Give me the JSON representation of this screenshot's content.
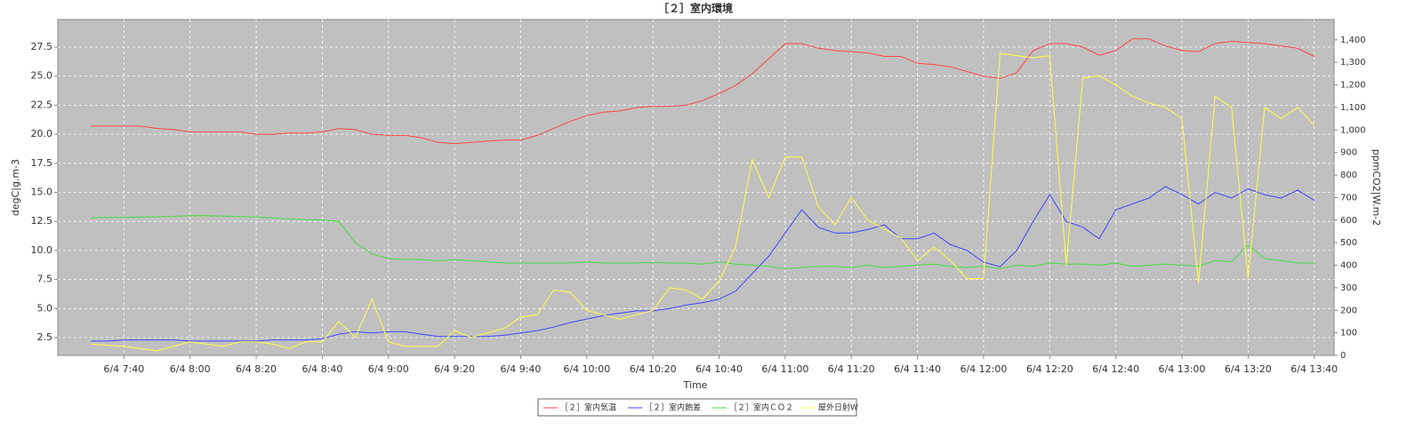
{
  "chart_data": {
    "type": "line",
    "title": "［２］室内環境",
    "xlabel": "Time",
    "ylabel": "degC|g.m-3",
    "y2label": "ppmCO2|W.m-2",
    "grid": true,
    "legend": "bottom",
    "x": [
      "6/4 7:30",
      "6/4 7:35",
      "6/4 7:40",
      "6/4 7:45",
      "6/4 7:50",
      "6/4 7:55",
      "6/4 8:00",
      "6/4 8:05",
      "6/4 8:10",
      "6/4 8:15",
      "6/4 8:20",
      "6/4 8:25",
      "6/4 8:30",
      "6/4 8:35",
      "6/4 8:40",
      "6/4 8:45",
      "6/4 8:50",
      "6/4 8:55",
      "6/4 9:00",
      "6/4 9:05",
      "6/4 9:10",
      "6/4 9:15",
      "6/4 9:20",
      "6/4 9:25",
      "6/4 9:30",
      "6/4 9:35",
      "6/4 9:40",
      "6/4 9:45",
      "6/4 9:50",
      "6/4 9:55",
      "6/4 10:00",
      "6/4 10:05",
      "6/4 10:10",
      "6/4 10:15",
      "6/4 10:20",
      "6/4 10:25",
      "6/4 10:30",
      "6/4 10:35",
      "6/4 10:40",
      "6/4 10:45",
      "6/4 10:50",
      "6/4 10:55",
      "6/4 11:00",
      "6/4 11:05",
      "6/4 11:10",
      "6/4 11:15",
      "6/4 11:20",
      "6/4 11:25",
      "6/4 11:30",
      "6/4 11:35",
      "6/4 11:40",
      "6/4 11:45",
      "6/4 11:50",
      "6/4 11:55",
      "6/4 12:00",
      "6/4 12:05",
      "6/4 12:10",
      "6/4 12:15",
      "6/4 12:20",
      "6/4 12:25",
      "6/4 12:30",
      "6/4 12:35",
      "6/4 12:40",
      "6/4 12:45",
      "6/4 12:50",
      "6/4 12:55",
      "6/4 13:00",
      "6/4 13:05",
      "6/4 13:10",
      "6/4 13:15",
      "6/4 13:20",
      "6/4 13:25",
      "6/4 13:30",
      "6/4 13:35",
      "6/4 13:40"
    ],
    "xlim": [
      "6/4 7:20",
      "6/4 13:46"
    ],
    "xticks": [
      "6/4 7:40",
      "6/4 8:00",
      "6/4 8:20",
      "6/4 8:40",
      "6/4 9:00",
      "6/4 9:20",
      "6/4 9:40",
      "6/4 10:00",
      "6/4 10:20",
      "6/4 10:40",
      "6/4 11:00",
      "6/4 11:20",
      "6/4 11:40",
      "6/4 12:00",
      "6/4 12:20",
      "6/4 12:40",
      "6/4 13:00",
      "6/4 13:20",
      "6/4 13:40"
    ],
    "ylim": [
      0.97,
      29.87
    ],
    "yticks": [
      2.5,
      {
        "value": 5,
        "label": "5.0"
      },
      7.5,
      {
        "value": 10,
        "label": "10.0"
      },
      12.5,
      {
        "value": 15,
        "label": "15.0"
      },
      17.5,
      {
        "value": 20,
        "label": "20.0"
      },
      22.5,
      {
        "value": 25,
        "label": "25.0"
      },
      27.5
    ],
    "y2lim": [
      0,
      1490
    ],
    "y2ticks": [
      0,
      100,
      200,
      300,
      400,
      500,
      600,
      700,
      800,
      900,
      {
        "value": 1000,
        "label": "1,000"
      },
      {
        "value": 1100,
        "label": "1,100"
      },
      {
        "value": 1200,
        "label": "1,200"
      },
      {
        "value": 1300,
        "label": "1,300"
      },
      {
        "value": 1400,
        "label": "1,400"
      }
    ],
    "series": [
      {
        "name": "［２］室内気温",
        "color": "#ff4444",
        "values": [
          20.7,
          20.7,
          20.7,
          20.7,
          20.5,
          20.4,
          20.2,
          20.2,
          20.2,
          20.2,
          20.0,
          20.0,
          20.1,
          20.1,
          20.2,
          20.5,
          20.4,
          20.0,
          19.9,
          19.9,
          19.7,
          19.3,
          19.2,
          19.3,
          19.4,
          19.5,
          19.5,
          19.9,
          20.5,
          21.1,
          21.6,
          21.9,
          22.0,
          22.3,
          22.4,
          22.4,
          22.5,
          22.9,
          23.5,
          24.2,
          25.2,
          26.5,
          27.8,
          27.8,
          27.4,
          27.2,
          27.1,
          27.0,
          26.7,
          26.7,
          26.1,
          26.0,
          25.8,
          25.4,
          25.0,
          24.8,
          25.3,
          27.2,
          27.8,
          27.8,
          27.5,
          26.8,
          27.2,
          28.2,
          28.2,
          27.6,
          27.2,
          27.1,
          27.8,
          28.0,
          27.9,
          27.8,
          27.6,
          27.4,
          26.7
        ]
      },
      {
        "name": "［２］室内飽差",
        "color": "#4444ff",
        "values": [
          2.2,
          2.2,
          2.3,
          2.3,
          2.3,
          2.3,
          2.2,
          2.2,
          2.2,
          2.2,
          2.2,
          2.3,
          2.3,
          2.3,
          2.4,
          2.8,
          3.0,
          2.9,
          3.0,
          3.0,
          2.8,
          2.6,
          2.6,
          2.6,
          2.6,
          2.7,
          2.9,
          3.1,
          3.4,
          3.8,
          4.1,
          4.4,
          4.6,
          4.8,
          4.8,
          5.0,
          5.3,
          5.5,
          5.8,
          6.5,
          8.0,
          9.5,
          11.5,
          13.5,
          12.0,
          11.5,
          11.5,
          11.8,
          12.2,
          11.0,
          11.0,
          11.5,
          10.5,
          10.0,
          9.0,
          8.6,
          10.0,
          12.5,
          14.8,
          12.5,
          12.0,
          11.0,
          13.5,
          14.0,
          14.5,
          15.5,
          14.8,
          14.0,
          15.0,
          14.5,
          15.3,
          14.8,
          14.5,
          15.2,
          14.3
        ]
      },
      {
        "name": "［２］室内ＣＯ２",
        "color": "#44dd44",
        "axis": "y2",
        "values": [
          610,
          612,
          612,
          614,
          615,
          617,
          620,
          620,
          618,
          616,
          614,
          610,
          605,
          602,
          600,
          595,
          500,
          450,
          430,
          425,
          425,
          420,
          425,
          420,
          415,
          410,
          410,
          410,
          410,
          410,
          415,
          410,
          410,
          410,
          412,
          410,
          410,
          405,
          415,
          405,
          400,
          395,
          385,
          390,
          395,
          395,
          390,
          400,
          390,
          395,
          400,
          405,
          395,
          390,
          395,
          385,
          400,
          395,
          410,
          405,
          405,
          400,
          410,
          395,
          400,
          405,
          400,
          395,
          420,
          415,
          490,
          430,
          420,
          410,
          410
        ]
      },
      {
        "name": "屋外日射W",
        "color": "#ffff44",
        "axis": "y2",
        "values": [
          50,
          45,
          40,
          30,
          20,
          40,
          60,
          50,
          40,
          60,
          60,
          50,
          30,
          60,
          60,
          150,
          80,
          250,
          60,
          40,
          40,
          40,
          110,
          80,
          100,
          120,
          170,
          180,
          290,
          280,
          200,
          180,
          160,
          180,
          200,
          300,
          290,
          250,
          330,
          480,
          870,
          700,
          880,
          880,
          660,
          580,
          700,
          600,
          560,
          520,
          420,
          480,
          420,
          340,
          340,
          1340,
          1330,
          1320,
          1330,
          400,
          1230,
          1240,
          1200,
          1150,
          1120,
          1100,
          1050,
          320,
          1150,
          1100,
          340,
          1100,
          1050,
          1100,
          1020
        ]
      }
    ]
  }
}
